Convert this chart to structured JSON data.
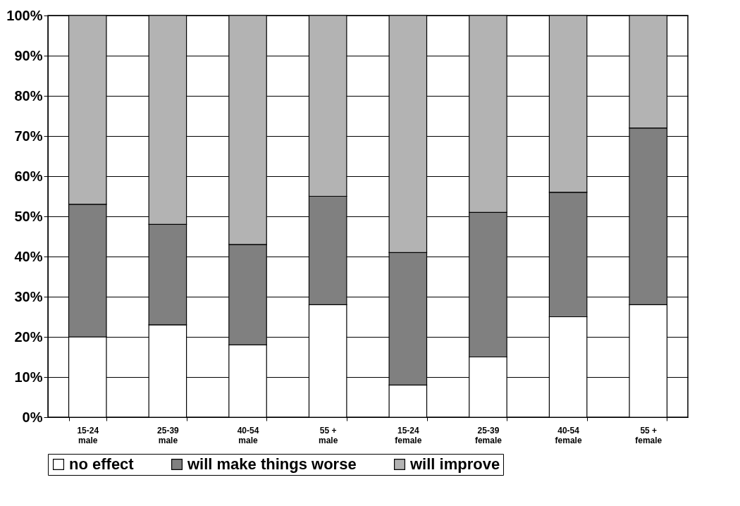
{
  "chart_data": {
    "type": "bar",
    "stacked": true,
    "categories": [
      "15-24\nmale",
      "25-39\nmale",
      "40-54\nmale",
      "55 +\nmale",
      "15-24\nfemale",
      "25-39\nfemale",
      "40-54\nfemale",
      "55 +\nfemale"
    ],
    "series": [
      {
        "name": "no effect",
        "color": "#ffffff",
        "values": [
          20,
          23,
          18,
          28,
          8,
          15,
          25,
          28
        ]
      },
      {
        "name": "will make things worse",
        "color": "#808080",
        "values": [
          33,
          25,
          25,
          27,
          33,
          36,
          31,
          44
        ]
      },
      {
        "name": "will improve",
        "color": "#b3b3b3",
        "values": [
          47,
          52,
          57,
          45,
          59,
          49,
          44,
          28
        ]
      }
    ],
    "ylim": [
      0,
      100
    ],
    "yticks": [
      {
        "value": 0,
        "label": "0%"
      },
      {
        "value": 10,
        "label": "10%"
      },
      {
        "value": 20,
        "label": "20%"
      },
      {
        "value": 30,
        "label": "30%"
      },
      {
        "value": 40,
        "label": "40%"
      },
      {
        "value": 50,
        "label": "50%"
      },
      {
        "value": 60,
        "label": "60%"
      },
      {
        "value": 70,
        "label": "70%"
      },
      {
        "value": 80,
        "label": "80%"
      },
      {
        "value": 90,
        "label": "90%"
      },
      {
        "value": 100,
        "label": "100%"
      }
    ],
    "grid": "y",
    "legend": "bottom"
  }
}
